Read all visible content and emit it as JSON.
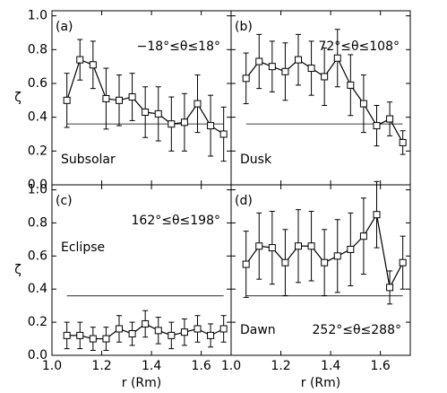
{
  "chart_data": [
    {
      "type": "line",
      "panel": "(a)",
      "annotation": "−18°≤θ≤18°",
      "region": "Subsolar",
      "ylabel": "ζ",
      "color": "#000000",
      "x": [
        1.06,
        1.1125,
        1.165,
        1.2175,
        1.27,
        1.3225,
        1.375,
        1.4275,
        1.48,
        1.5325,
        1.585,
        1.6375,
        1.69
      ],
      "values": [
        0.5,
        0.74,
        0.71,
        0.51,
        0.5,
        0.52,
        0.43,
        0.42,
        0.36,
        0.37,
        0.48,
        0.35,
        0.3
      ],
      "errors": [
        0.16,
        0.12,
        0.14,
        0.18,
        0.15,
        0.14,
        0.15,
        0.16,
        0.16,
        0.17,
        0.17,
        0.18,
        0.16
      ],
      "reference": 0.36,
      "xlim": [
        1.0,
        1.72
      ],
      "ylim": [
        0,
        1.03
      ],
      "xticks": [
        1,
        1.2,
        1.4,
        1.6
      ],
      "yticks": [
        {
          "value": 0,
          "label": "0.0"
        },
        0.2,
        0.4,
        0.6,
        0.8,
        {
          "value": 1,
          "label": "1.0"
        }
      ]
    },
    {
      "type": "line",
      "panel": "(b)",
      "annotation": "72°≤θ≤108°",
      "region": "Dusk",
      "color": "#000000",
      "x": [
        1.06,
        1.1125,
        1.165,
        1.2175,
        1.27,
        1.3225,
        1.375,
        1.4275,
        1.48,
        1.5325,
        1.585,
        1.6375,
        1.69
      ],
      "values": [
        0.63,
        0.73,
        0.7,
        0.67,
        0.74,
        0.69,
        0.64,
        0.75,
        0.59,
        0.48,
        0.35,
        0.39,
        0.25
      ],
      "errors": [
        0.15,
        0.16,
        0.15,
        0.17,
        0.15,
        0.16,
        0.17,
        0.17,
        0.18,
        0.17,
        0.12,
        0.1,
        0.07
      ],
      "reference": 0.36,
      "xlim": [
        1.0,
        1.72
      ],
      "ylim": [
        0,
        1.03
      ],
      "xticks": [
        1,
        1.2,
        1.4,
        1.6
      ],
      "yticks": [
        0,
        0.2,
        0.4,
        0.6,
        0.8,
        1
      ]
    },
    {
      "type": "line",
      "panel": "(c)",
      "annotation": "162°≤θ≤198°",
      "region": "Eclipse",
      "ylabel": "ζ",
      "xlabel": "r (Rm)",
      "color": "#000000",
      "x": [
        1.06,
        1.1125,
        1.165,
        1.2175,
        1.27,
        1.3225,
        1.375,
        1.4275,
        1.48,
        1.5325,
        1.585,
        1.6375,
        1.69
      ],
      "values": [
        0.12,
        0.12,
        0.1,
        0.1,
        0.16,
        0.13,
        0.19,
        0.15,
        0.12,
        0.14,
        0.16,
        0.12,
        0.16
      ],
      "errors": [
        0.08,
        0.08,
        0.07,
        0.07,
        0.08,
        0.07,
        0.08,
        0.08,
        0.08,
        0.08,
        0.08,
        0.07,
        0.08
      ],
      "reference": 0.36,
      "xlim": [
        1.0,
        1.72
      ],
      "ylim": [
        0,
        1.03
      ],
      "xticks": [
        {
          "value": 1,
          "label": "1.0"
        },
        1.2,
        1.4,
        1.6
      ],
      "yticks": [
        {
          "value": 0,
          "label": "0.0"
        },
        0.2,
        0.4,
        0.6,
        0.8,
        {
          "value": 1,
          "label": "1.0"
        }
      ]
    },
    {
      "type": "line",
      "panel": "(d)",
      "annotation": "252°≤θ≤288°",
      "region": "Dawn",
      "xlabel": "r (Rm)",
      "color": "#000000",
      "x": [
        1.06,
        1.1125,
        1.165,
        1.2175,
        1.27,
        1.3225,
        1.375,
        1.4275,
        1.48,
        1.5325,
        1.585,
        1.6375,
        1.69
      ],
      "values": [
        0.55,
        0.66,
        0.65,
        0.56,
        0.66,
        0.66,
        0.56,
        0.6,
        0.64,
        0.72,
        0.85,
        0.41,
        0.56
      ],
      "errors": [
        0.2,
        0.2,
        0.22,
        0.2,
        0.22,
        0.21,
        0.2,
        0.22,
        0.22,
        0.23,
        0.2,
        0.1,
        0.16
      ],
      "reference": 0.36,
      "xlim": [
        1.0,
        1.72
      ],
      "ylim": [
        0,
        1.03
      ],
      "xticks": [
        {
          "value": 1,
          "label": "1.0"
        },
        1.2,
        1.4,
        1.6
      ],
      "yticks": [
        0,
        0.2,
        0.4,
        0.6,
        0.8,
        1
      ]
    }
  ]
}
